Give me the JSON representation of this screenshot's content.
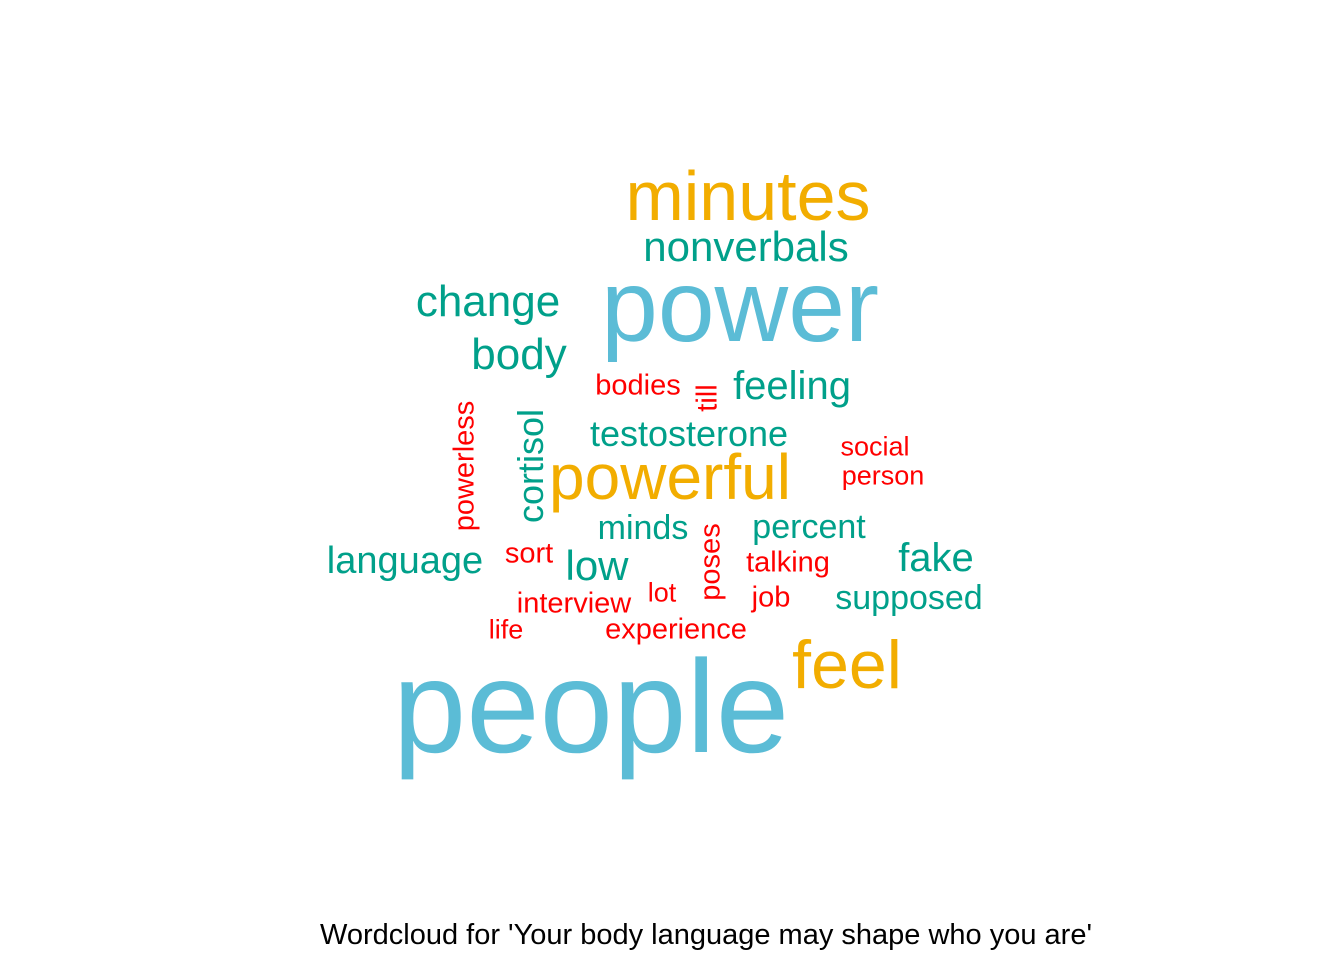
{
  "chart_data": {
    "type": "wordcloud",
    "caption": "Wordcloud for 'Your body language may shape who you are'",
    "colors": {
      "tier1": "#5bbcd6",
      "tier2": "#f2ad00",
      "tier3": "#00a08a",
      "tier4": "#ff0000"
    },
    "words": [
      {
        "text": "people",
        "tier": 1
      },
      {
        "text": "power",
        "tier": 1
      },
      {
        "text": "minutes",
        "tier": 2
      },
      {
        "text": "powerful",
        "tier": 2
      },
      {
        "text": "feel",
        "tier": 2
      },
      {
        "text": "nonverbals",
        "tier": 3
      },
      {
        "text": "change",
        "tier": 3
      },
      {
        "text": "body",
        "tier": 3
      },
      {
        "text": "feeling",
        "tier": 3
      },
      {
        "text": "testosterone",
        "tier": 3
      },
      {
        "text": "cortisol",
        "tier": 3
      },
      {
        "text": "minds",
        "tier": 3
      },
      {
        "text": "percent",
        "tier": 3
      },
      {
        "text": "language",
        "tier": 3
      },
      {
        "text": "low",
        "tier": 3
      },
      {
        "text": "fake",
        "tier": 3
      },
      {
        "text": "supposed",
        "tier": 3
      },
      {
        "text": "bodies",
        "tier": 4
      },
      {
        "text": "till",
        "tier": 4
      },
      {
        "text": "powerless",
        "tier": 4
      },
      {
        "text": "social",
        "tier": 4
      },
      {
        "text": "person",
        "tier": 4
      },
      {
        "text": "sort",
        "tier": 4
      },
      {
        "text": "poses",
        "tier": 4
      },
      {
        "text": "talking",
        "tier": 4
      },
      {
        "text": "interview",
        "tier": 4
      },
      {
        "text": "lot",
        "tier": 4
      },
      {
        "text": "job",
        "tier": 4
      },
      {
        "text": "life",
        "tier": 4
      },
      {
        "text": "experience",
        "tier": 4
      }
    ]
  }
}
